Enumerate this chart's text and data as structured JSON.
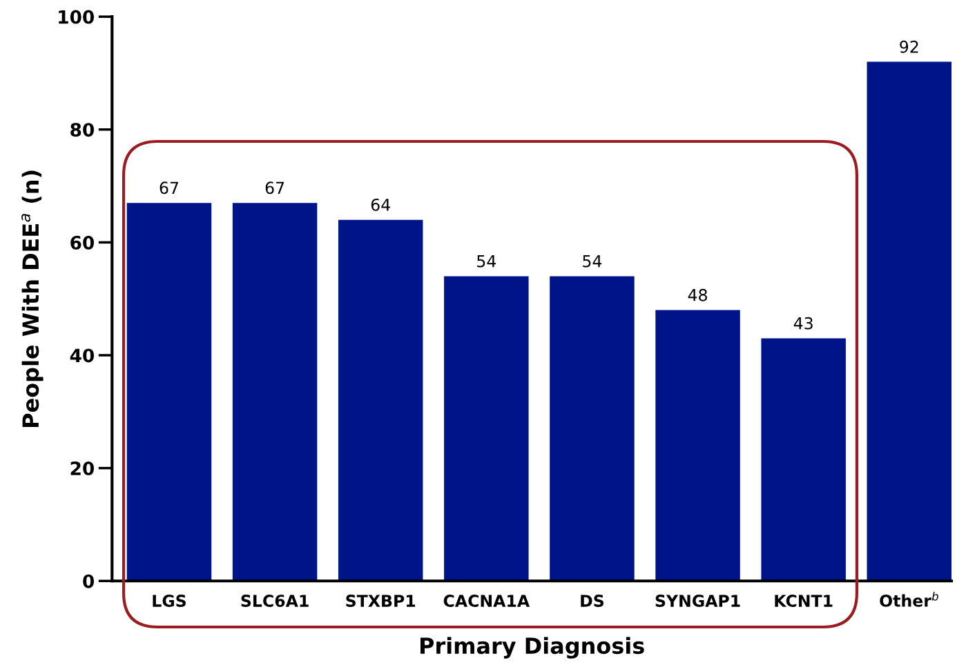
{
  "chart_data": {
    "type": "bar",
    "xlabel": "Primary Diagnosis",
    "ylabel": "People With DEE$^{a}$ (n)",
    "categories": [
      "LGS",
      "SLC6A1",
      "STXBP1",
      "CACNA1A",
      "DS",
      "SYNGAP1",
      "KCNT1",
      "Other$^{b}$"
    ],
    "values": [
      67,
      67,
      64,
      54,
      54,
      48,
      43,
      92
    ],
    "color": "#001489",
    "ylim": [
      0,
      100
    ],
    "yticks": [
      0,
      20,
      40,
      60,
      80,
      100
    ],
    "data_labels": true,
    "grid": false,
    "legend": false
  }
}
